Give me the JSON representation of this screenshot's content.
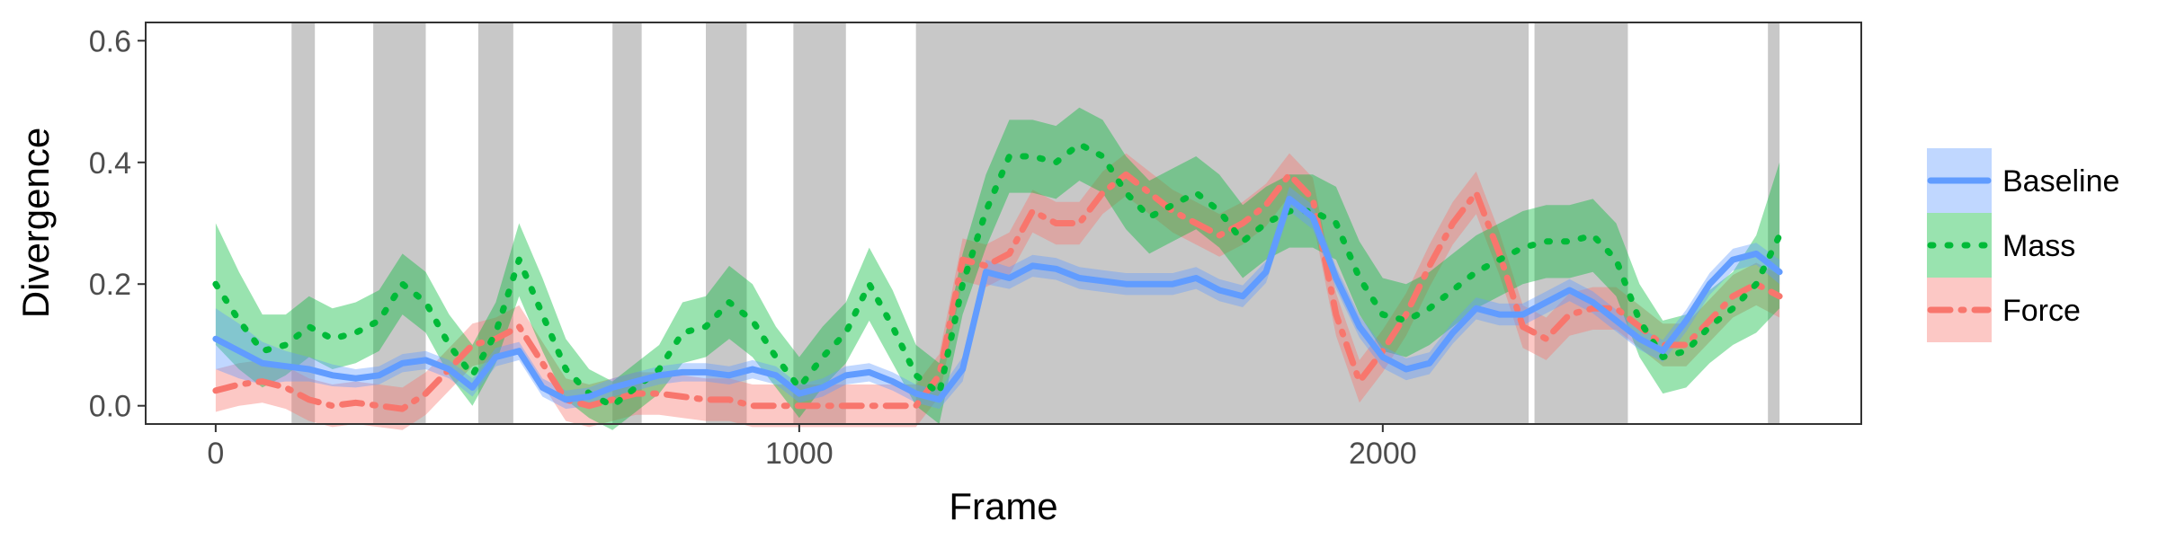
{
  "chart_data": {
    "type": "line",
    "title": "",
    "xlabel": "Frame",
    "ylabel": "Divergence",
    "xlim": [
      -120,
      2820
    ],
    "ylim": [
      -0.03,
      0.63
    ],
    "xticks": [
      0,
      1000,
      2000
    ],
    "xtick_labels": [
      "0",
      "1000",
      "2000"
    ],
    "yticks": [
      0.0,
      0.2,
      0.4,
      0.6
    ],
    "ytick_labels": [
      "0.0",
      "0.2",
      "0.4",
      "0.6"
    ],
    "grid": false,
    "legend_position": "right",
    "shaded_regions": [
      [
        130,
        170
      ],
      [
        270,
        360
      ],
      [
        450,
        510
      ],
      [
        680,
        730
      ],
      [
        840,
        910
      ],
      [
        990,
        1080
      ],
      [
        1200,
        2250
      ],
      [
        2260,
        2420
      ],
      [
        2660,
        2680
      ]
    ],
    "x": [
      0,
      40,
      80,
      120,
      160,
      200,
      240,
      280,
      320,
      360,
      400,
      440,
      480,
      520,
      560,
      600,
      640,
      680,
      720,
      760,
      800,
      840,
      880,
      920,
      960,
      1000,
      1040,
      1080,
      1120,
      1160,
      1200,
      1240,
      1280,
      1320,
      1360,
      1400,
      1440,
      1480,
      1520,
      1560,
      1600,
      1640,
      1680,
      1720,
      1760,
      1800,
      1840,
      1880,
      1920,
      1960,
      2000,
      2040,
      2080,
      2120,
      2160,
      2200,
      2240,
      2280,
      2320,
      2360,
      2400,
      2440,
      2480,
      2520,
      2560,
      2600,
      2640,
      2680
    ],
    "series": [
      {
        "name": "Baseline",
        "color": "#619CFF",
        "line_style": "solid",
        "values": [
          0.11,
          0.09,
          0.07,
          0.065,
          0.06,
          0.05,
          0.045,
          0.05,
          0.07,
          0.075,
          0.06,
          0.03,
          0.08,
          0.09,
          0.03,
          0.01,
          0.015,
          0.03,
          0.04,
          0.05,
          0.055,
          0.055,
          0.05,
          0.06,
          0.05,
          0.02,
          0.03,
          0.05,
          0.055,
          0.04,
          0.02,
          0.01,
          0.06,
          0.22,
          0.21,
          0.23,
          0.225,
          0.21,
          0.205,
          0.2,
          0.2,
          0.2,
          0.21,
          0.19,
          0.18,
          0.22,
          0.34,
          0.31,
          0.21,
          0.13,
          0.08,
          0.06,
          0.07,
          0.12,
          0.16,
          0.15,
          0.15,
          0.17,
          0.19,
          0.17,
          0.14,
          0.11,
          0.09,
          0.14,
          0.2,
          0.24,
          0.25,
          0.22
        ],
        "band_halfwidth": [
          0.05,
          0.045,
          0.035,
          0.025,
          0.02,
          0.018,
          0.015,
          0.015,
          0.015,
          0.015,
          0.015,
          0.015,
          0.015,
          0.015,
          0.015,
          0.015,
          0.015,
          0.015,
          0.015,
          0.015,
          0.015,
          0.015,
          0.015,
          0.015,
          0.015,
          0.015,
          0.015,
          0.015,
          0.015,
          0.015,
          0.015,
          0.015,
          0.02,
          0.02,
          0.018,
          0.018,
          0.018,
          0.018,
          0.018,
          0.018,
          0.018,
          0.018,
          0.018,
          0.018,
          0.018,
          0.018,
          0.02,
          0.02,
          0.018,
          0.018,
          0.018,
          0.018,
          0.018,
          0.018,
          0.018,
          0.018,
          0.018,
          0.018,
          0.018,
          0.018,
          0.018,
          0.018,
          0.018,
          0.018,
          0.018,
          0.018,
          0.018,
          0.02
        ]
      },
      {
        "name": "Mass",
        "color": "#00BA38",
        "line_style": "dotted",
        "values": [
          0.2,
          0.14,
          0.09,
          0.1,
          0.13,
          0.11,
          0.12,
          0.14,
          0.2,
          0.17,
          0.1,
          0.05,
          0.12,
          0.24,
          0.15,
          0.06,
          0.02,
          0.0,
          0.03,
          0.06,
          0.12,
          0.13,
          0.17,
          0.14,
          0.08,
          0.03,
          0.08,
          0.12,
          0.2,
          0.13,
          0.05,
          0.02,
          0.2,
          0.32,
          0.41,
          0.41,
          0.4,
          0.43,
          0.41,
          0.35,
          0.31,
          0.33,
          0.35,
          0.32,
          0.27,
          0.3,
          0.32,
          0.32,
          0.3,
          0.21,
          0.15,
          0.14,
          0.16,
          0.19,
          0.22,
          0.24,
          0.26,
          0.27,
          0.27,
          0.28,
          0.24,
          0.14,
          0.08,
          0.09,
          0.13,
          0.16,
          0.2,
          0.28
        ],
        "band_halfwidth": [
          0.1,
          0.08,
          0.06,
          0.05,
          0.05,
          0.05,
          0.05,
          0.05,
          0.05,
          0.05,
          0.05,
          0.05,
          0.05,
          0.06,
          0.06,
          0.05,
          0.04,
          0.04,
          0.04,
          0.04,
          0.05,
          0.05,
          0.06,
          0.06,
          0.05,
          0.05,
          0.05,
          0.05,
          0.06,
          0.06,
          0.05,
          0.05,
          0.05,
          0.06,
          0.06,
          0.06,
          0.06,
          0.06,
          0.06,
          0.06,
          0.06,
          0.06,
          0.06,
          0.06,
          0.06,
          0.06,
          0.06,
          0.06,
          0.06,
          0.06,
          0.06,
          0.06,
          0.06,
          0.06,
          0.06,
          0.06,
          0.06,
          0.06,
          0.06,
          0.06,
          0.06,
          0.06,
          0.06,
          0.06,
          0.06,
          0.06,
          0.08,
          0.12
        ]
      },
      {
        "name": "Force",
        "color": "#F8766D",
        "line_style": "dashed",
        "values": [
          0.025,
          0.035,
          0.04,
          0.03,
          0.01,
          0.0,
          0.005,
          0.0,
          -0.005,
          0.02,
          0.06,
          0.1,
          0.11,
          0.13,
          0.07,
          0.01,
          0.0,
          0.01,
          0.02,
          0.02,
          0.015,
          0.01,
          0.01,
          0.0,
          0.0,
          0.0,
          0.0,
          0.0,
          0.0,
          0.0,
          0.0,
          0.05,
          0.24,
          0.23,
          0.25,
          0.32,
          0.3,
          0.3,
          0.35,
          0.38,
          0.35,
          0.32,
          0.3,
          0.28,
          0.3,
          0.33,
          0.38,
          0.34,
          0.15,
          0.04,
          0.09,
          0.15,
          0.23,
          0.3,
          0.35,
          0.25,
          0.13,
          0.11,
          0.15,
          0.16,
          0.16,
          0.13,
          0.1,
          0.1,
          0.14,
          0.18,
          0.2,
          0.18
        ]
      }
    ]
  }
}
